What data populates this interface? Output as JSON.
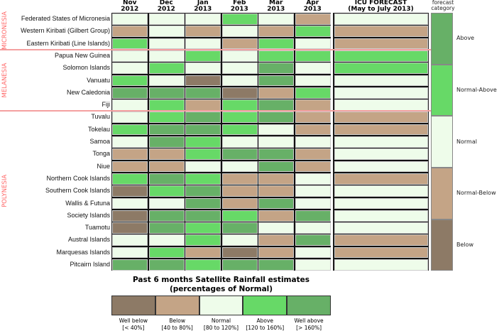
{
  "chart_data": {
    "type": "heatmap",
    "colors": {
      "WB": "#8d7a66",
      "B": "#c4a486",
      "N": "#eefcea",
      "A": "#67d967",
      "WA": "#67b067"
    },
    "columns": [
      {
        "month": "Nov",
        "year": "2012"
      },
      {
        "month": "Dec",
        "year": "2012"
      },
      {
        "month": "Jan",
        "year": "2013"
      },
      {
        "month": "Feb",
        "year": "2013"
      },
      {
        "month": "Mar",
        "year": "2013"
      },
      {
        "month": "Apr",
        "year": "2013"
      }
    ],
    "forecast_header": {
      "line1": "ICU FORECAST",
      "line2": "(May to July 2013)"
    },
    "regions": [
      {
        "name": "MICRONESIA",
        "rows": 3
      },
      {
        "name": "MELANESIA",
        "rows": 5
      },
      {
        "name": "POLYNESIA",
        "rows": 13
      }
    ],
    "rows": [
      {
        "name": "Federated States of Micronesia",
        "values": [
          "N",
          "N",
          "N",
          "A",
          "N",
          "B"
        ],
        "forecast": "N"
      },
      {
        "name": "Western Kiribati (Gilbert Group)",
        "values": [
          "B",
          "N",
          "B",
          "N",
          "B",
          "A"
        ],
        "forecast": "B"
      },
      {
        "name": "Eastern Kiribati (Line Islands)",
        "values": [
          "A",
          "N",
          "N",
          "B",
          "A",
          "N"
        ],
        "forecast": "B"
      },
      {
        "name": "Papua New Guinea",
        "values": [
          "N",
          "N",
          "A",
          "N",
          "A",
          "A"
        ],
        "forecast": "A"
      },
      {
        "name": "Solomon Islands",
        "values": [
          "N",
          "A",
          "N",
          "N",
          "WA",
          "N"
        ],
        "forecast": "A"
      },
      {
        "name": "Vanuatu",
        "values": [
          "A",
          "N",
          "WB",
          "N",
          "WA",
          "N"
        ],
        "forecast": "N"
      },
      {
        "name": "New Caledonia",
        "values": [
          "WA",
          "WA",
          "WA",
          "WB",
          "B",
          "A"
        ],
        "forecast": "N"
      },
      {
        "name": "Fiji",
        "values": [
          "N",
          "A",
          "B",
          "A",
          "WA",
          "B"
        ],
        "forecast": "N"
      },
      {
        "name": "Tuvalu",
        "values": [
          "N",
          "A",
          "WA",
          "A",
          "WA",
          "B"
        ],
        "forecast": "B"
      },
      {
        "name": "Tokelau",
        "values": [
          "A",
          "WA",
          "WA",
          "A",
          "N",
          "B"
        ],
        "forecast": "B"
      },
      {
        "name": "Samoa",
        "values": [
          "N",
          "WA",
          "A",
          "N",
          "N",
          "N"
        ],
        "forecast": "N"
      },
      {
        "name": "Tonga",
        "values": [
          "B",
          "B",
          "A",
          "WA",
          "WA",
          "B"
        ],
        "forecast": "N"
      },
      {
        "name": "Niue",
        "values": [
          "B",
          "B",
          "N",
          "N",
          "WA",
          "B"
        ],
        "forecast": "N"
      },
      {
        "name": "Northern Cook Islands",
        "values": [
          "A",
          "WA",
          "A",
          "B",
          "B",
          "N"
        ],
        "forecast": "B"
      },
      {
        "name": "Southern Cook Islands",
        "values": [
          "WB",
          "A",
          "WA",
          "B",
          "B",
          "N"
        ],
        "forecast": "N"
      },
      {
        "name": "Wallis & Futuna",
        "values": [
          "N",
          "N",
          "WA",
          "B",
          "WA",
          "N"
        ],
        "forecast": "N"
      },
      {
        "name": "Society Islands",
        "values": [
          "WB",
          "WA",
          "WA",
          "A",
          "B",
          "WA"
        ],
        "forecast": "N"
      },
      {
        "name": "Tuamotu",
        "values": [
          "WB",
          "WA",
          "A",
          "WA",
          "N",
          "N"
        ],
        "forecast": "N"
      },
      {
        "name": "Austral Islands",
        "values": [
          "N",
          "N",
          "A",
          "N",
          "B",
          "WA"
        ],
        "forecast": "B"
      },
      {
        "name": "Marquesas Islands",
        "values": [
          "N",
          "A",
          "B",
          "WB",
          "B",
          "N"
        ],
        "forecast": "B"
      },
      {
        "name": "Pitcairn Island",
        "values": [
          "WA",
          "WA",
          "A",
          "WA",
          "WA",
          "N"
        ],
        "forecast": "N"
      }
    ],
    "forecast_legend": {
      "title_line1": "forecast",
      "title_line2": "category",
      "items": [
        {
          "label": "Above",
          "cat": "WA"
        },
        {
          "label": "Normal-Above",
          "cat": "A"
        },
        {
          "label": "Normal",
          "cat": "N"
        },
        {
          "label": "Normal-Below",
          "cat": "B"
        },
        {
          "label": "Below",
          "cat": "WB"
        }
      ]
    },
    "colorbar": {
      "title_line1": "Past 6 months Satellite Rainfall estimates",
      "title_line2": "(percentages of Normal)",
      "items": [
        {
          "label": "Well below",
          "range": "[< 40%]",
          "cat": "WB"
        },
        {
          "label": "Below",
          "range": "[40 to 80%]",
          "cat": "B"
        },
        {
          "label": "Normal",
          "range": "[80 to 120%]",
          "cat": "N"
        },
        {
          "label": "Above",
          "range": "[120 to 160%]",
          "cat": "A"
        },
        {
          "label": "Well above",
          "range": "[> 160%]",
          "cat": "WA"
        }
      ]
    }
  }
}
